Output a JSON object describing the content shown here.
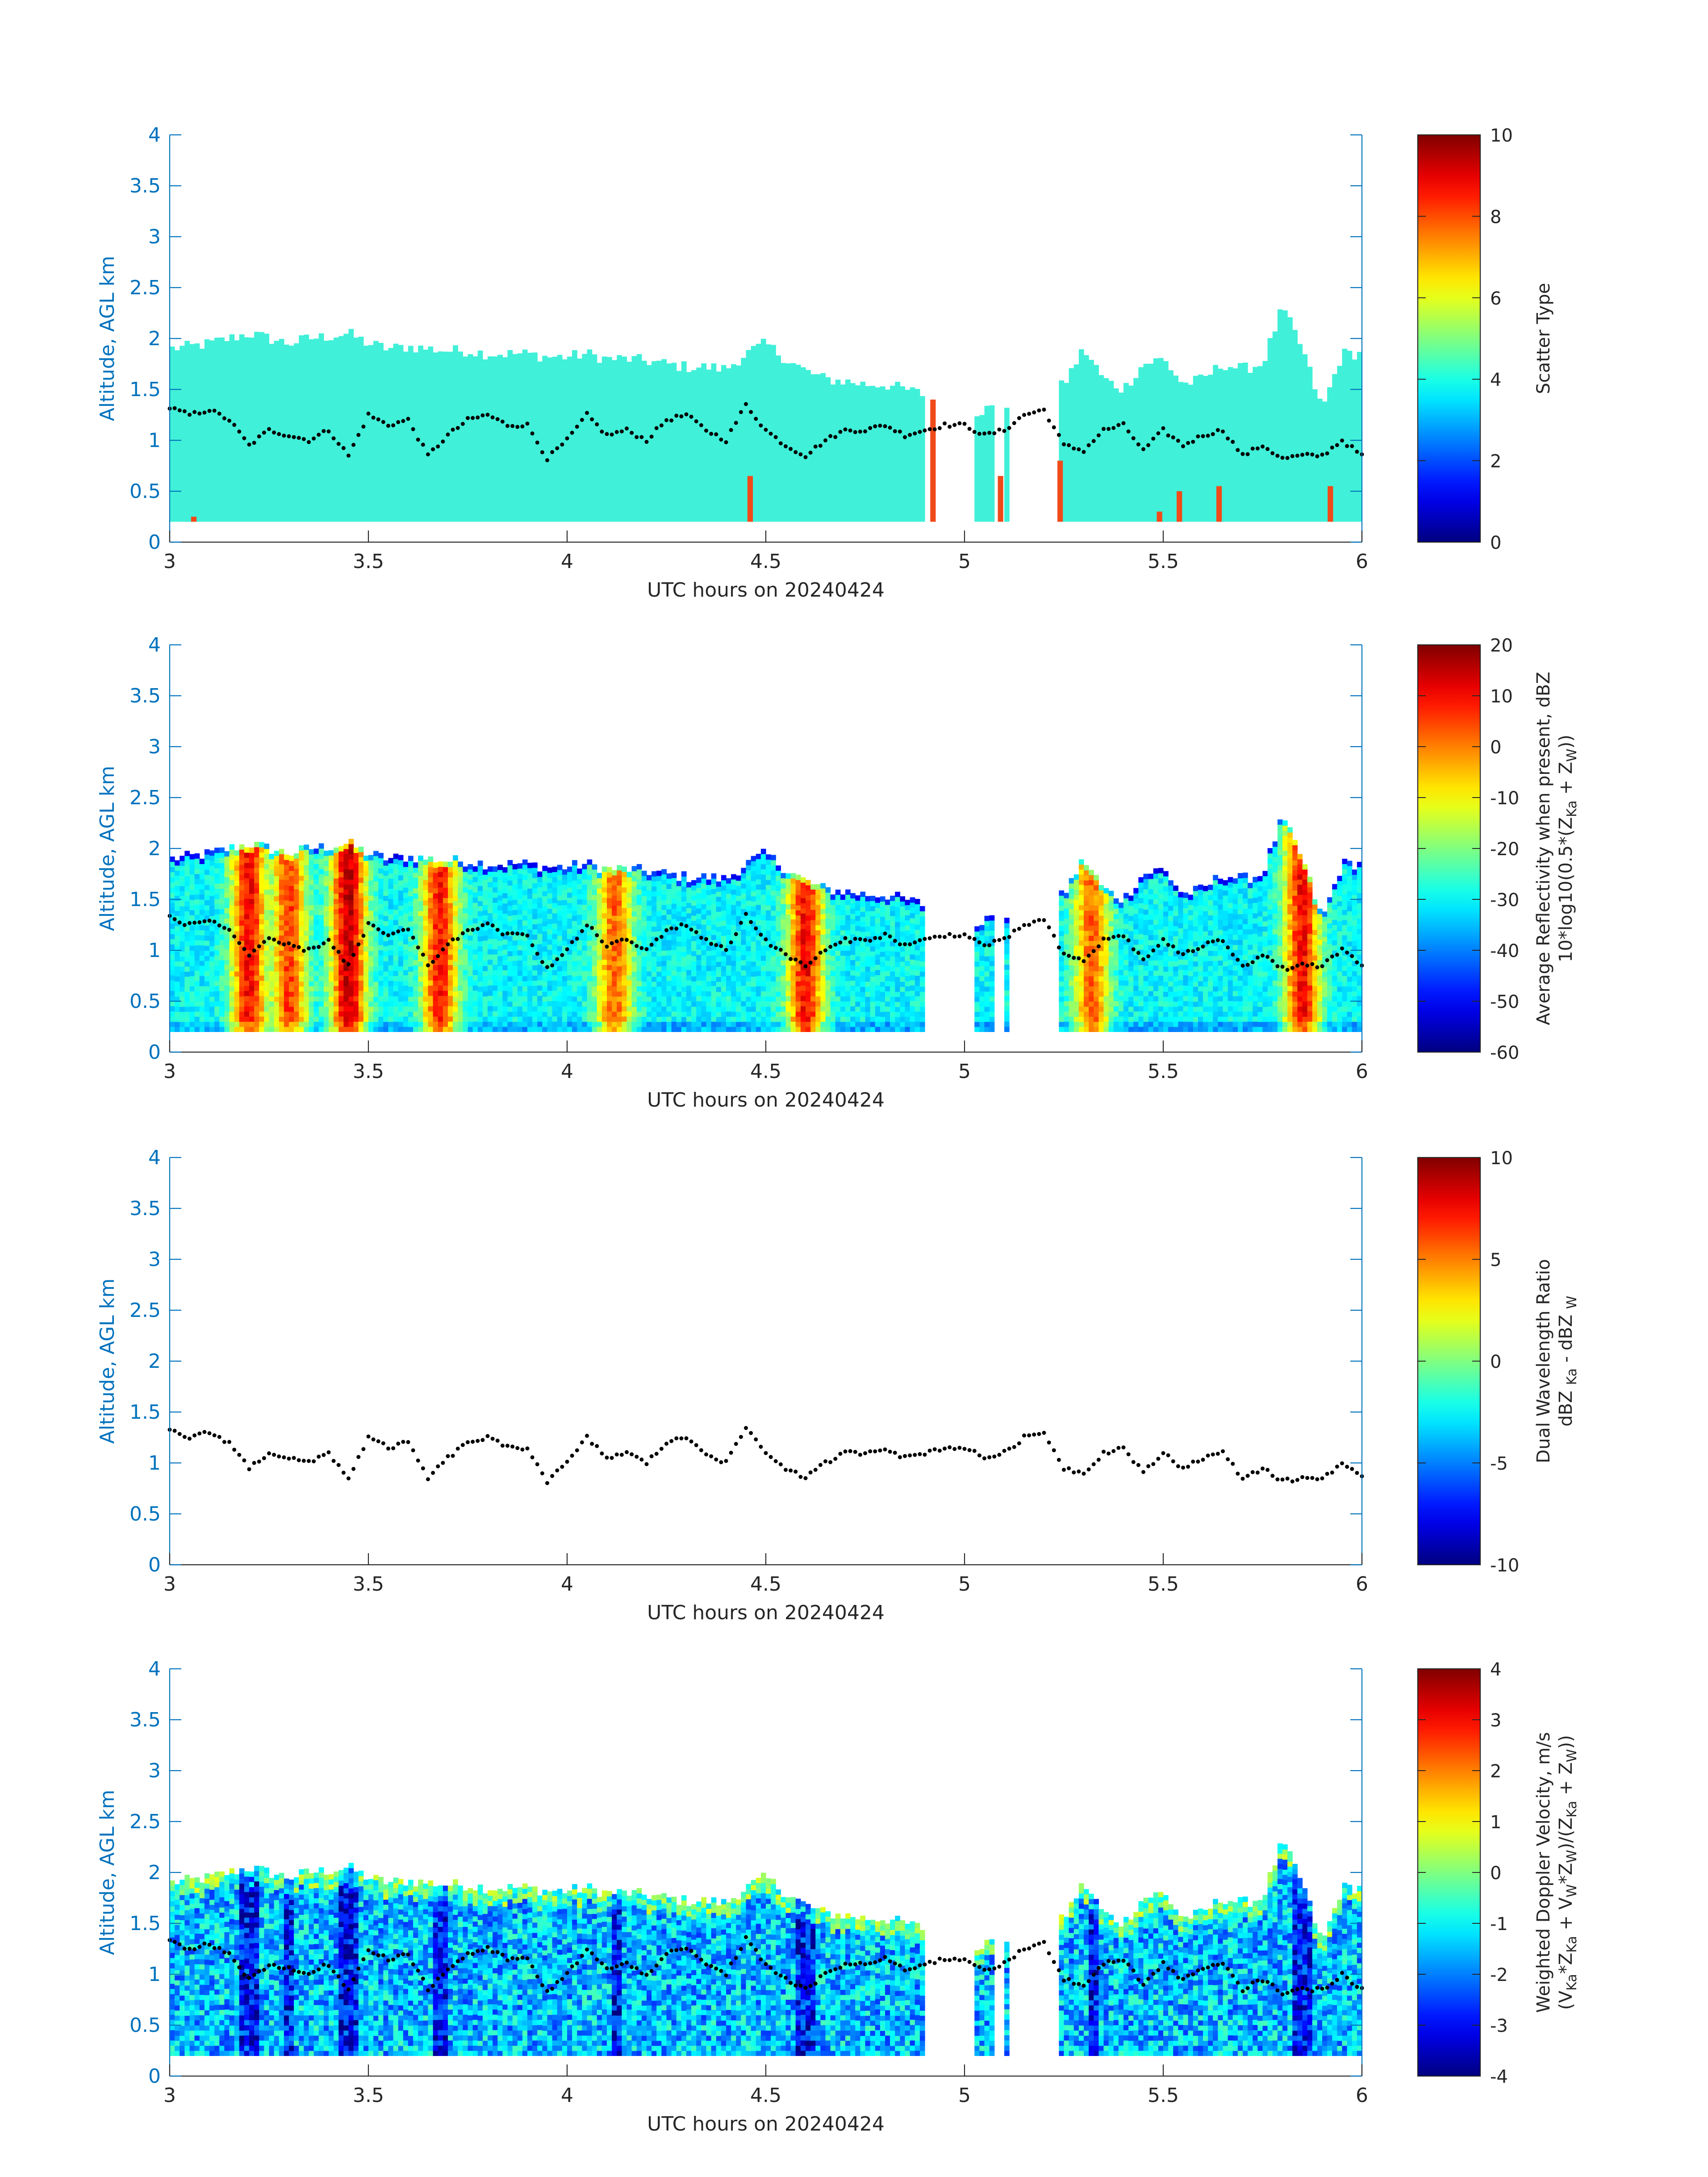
{
  "colors": {
    "axis": "#0072BD",
    "scatter_fill": "#40F0D8",
    "scatter_orange": "#F04A1A",
    "dots": "#000000",
    "colormap": "jet"
  },
  "x_axis": {
    "label": "UTC hours on 20240424",
    "range": [
      3,
      6
    ],
    "ticks": [
      "3",
      "3.5",
      "4",
      "4.5",
      "5",
      "5.5",
      "6"
    ]
  },
  "y_axis": {
    "label": "Altitude, AGL km",
    "range": [
      0,
      4
    ],
    "ticks": [
      "0",
      "0.5",
      "1",
      "1.5",
      "2",
      "2.5",
      "3",
      "3.5",
      "4"
    ]
  },
  "panels": [
    {
      "colorbar": {
        "range": [
          0,
          10
        ],
        "ticks": [
          "0",
          "2",
          "4",
          "6",
          "8",
          "10"
        ],
        "label_line1": "Scatter Type",
        "label_line2": ""
      }
    },
    {
      "colorbar": {
        "range": [
          -60,
          20
        ],
        "ticks": [
          "-60",
          "-50",
          "-40",
          "-30",
          "-20",
          "-10",
          "0",
          "10",
          "20"
        ],
        "label_line1": "Average Reflectivity when present, dBZ",
        "label_line2": "10*log10(0.5*(Z",
        "label_line2_parts": [
          "10*log10(0.5*(Z",
          "Ka",
          " + Z",
          "W",
          "))"
        ]
      }
    },
    {
      "colorbar": {
        "range": [
          -10,
          10
        ],
        "ticks": [
          "-10",
          "-5",
          "0",
          "5",
          "10"
        ],
        "label_line1": "Dual Wavelength Ratio",
        "label_line2_parts": [
          "dBZ ",
          "Ka",
          " - dBZ ",
          "W",
          ""
        ]
      }
    },
    {
      "colorbar": {
        "range": [
          -4,
          4
        ],
        "ticks": [
          "-4",
          "-3",
          "-2",
          "-1",
          "0",
          "1",
          "2",
          "3",
          "4"
        ],
        "label_line1": "Weighted Doppler Velocity, m/s",
        "label_line2_parts": [
          "(V",
          "Ka",
          "*Z",
          "Ka",
          " + V",
          "W",
          "*Z",
          "W",
          ")/(Z",
          "Ka",
          " + Z",
          "W",
          "))"
        ]
      }
    }
  ],
  "chart_data": {
    "type": "heatmap",
    "x_range": [
      3,
      6
    ],
    "y_range": [
      0,
      4
    ],
    "cloud_base_km": 0.2,
    "cloud_top_km": {
      "x": [
        3.0,
        3.05,
        3.1,
        3.15,
        3.2,
        3.25,
        3.3,
        3.35,
        3.4,
        3.45,
        3.5,
        3.55,
        3.6,
        3.65,
        3.7,
        3.75,
        3.8,
        3.85,
        3.9,
        3.95,
        4.0,
        4.05,
        4.1,
        4.15,
        4.2,
        4.25,
        4.3,
        4.35,
        4.4,
        4.45,
        4.5,
        4.55,
        4.6,
        4.65,
        4.7,
        4.75,
        4.8,
        4.85,
        4.9,
        4.95,
        5.0,
        5.05,
        5.1,
        5.15,
        5.2,
        5.25,
        5.3,
        5.35,
        5.4,
        5.45,
        5.5,
        5.55,
        5.6,
        5.65,
        5.7,
        5.75,
        5.8,
        5.85,
        5.9,
        5.95,
        6.0
      ],
      "y": [
        1.9,
        1.92,
        1.95,
        2.0,
        2.05,
        2.0,
        1.95,
        2.0,
        2.02,
        2.05,
        1.95,
        1.9,
        1.92,
        1.9,
        1.88,
        1.88,
        1.85,
        1.85,
        1.85,
        1.82,
        1.82,
        1.85,
        1.8,
        1.8,
        1.78,
        1.75,
        1.72,
        1.72,
        1.7,
        1.85,
        1.95,
        1.8,
        1.68,
        1.6,
        1.58,
        1.55,
        1.55,
        1.5,
        1.45,
        1.38,
        1.25,
        1.3,
        1.35,
        1.38,
        1.4,
        1.55,
        1.9,
        1.6,
        1.5,
        1.75,
        1.8,
        1.55,
        1.6,
        1.75,
        1.7,
        1.75,
        2.3,
        1.9,
        1.3,
        1.85,
        1.85
      ]
    },
    "gaps_hours": [
      [
        4.9,
        5.02
      ],
      [
        5.08,
        5.1
      ],
      [
        5.11,
        5.24
      ]
    ],
    "dots_altitude_km": {
      "x": [
        3.0,
        3.05,
        3.1,
        3.15,
        3.2,
        3.25,
        3.3,
        3.35,
        3.4,
        3.45,
        3.5,
        3.55,
        3.6,
        3.65,
        3.7,
        3.75,
        3.8,
        3.85,
        3.9,
        3.95,
        4.0,
        4.05,
        4.1,
        4.15,
        4.2,
        4.25,
        4.3,
        4.35,
        4.4,
        4.45,
        4.5,
        4.55,
        4.6,
        4.65,
        4.7,
        4.75,
        4.8,
        4.85,
        4.9,
        4.95,
        5.0,
        5.05,
        5.1,
        5.15,
        5.2,
        5.25,
        5.3,
        5.35,
        5.4,
        5.45,
        5.5,
        5.55,
        5.6,
        5.65,
        5.7,
        5.75,
        5.8,
        5.85,
        5.9,
        5.95,
        6.0
      ],
      "y": [
        1.32,
        1.25,
        1.3,
        1.2,
        0.95,
        1.1,
        1.05,
        1.0,
        1.1,
        0.85,
        1.25,
        1.15,
        1.2,
        0.85,
        1.05,
        1.2,
        1.25,
        1.15,
        1.15,
        0.82,
        1.0,
        1.25,
        1.05,
        1.1,
        1.0,
        1.2,
        1.25,
        1.1,
        1.0,
        1.35,
        1.1,
        0.95,
        0.85,
        1.0,
        1.1,
        1.1,
        1.15,
        1.05,
        1.1,
        1.15,
        1.15,
        1.05,
        1.1,
        1.25,
        1.3,
        0.95,
        0.9,
        1.1,
        1.15,
        0.9,
        1.1,
        0.95,
        1.05,
        1.1,
        0.85,
        0.95,
        0.82,
        0.85,
        0.85,
        1.0,
        0.85
      ]
    },
    "scatter_type_dominant": 4,
    "scatter_type_secondary": 8,
    "scatter_type_secondary_columns": [
      {
        "x": 3.06,
        "top": 0.25
      },
      {
        "x": 4.46,
        "top": 0.65
      },
      {
        "x": 4.92,
        "top": 1.4
      },
      {
        "x": 5.09,
        "top": 0.65
      },
      {
        "x": 5.24,
        "top": 0.8
      },
      {
        "x": 5.49,
        "top": 0.3
      },
      {
        "x": 5.54,
        "top": 0.5
      },
      {
        "x": 5.64,
        "top": 0.55
      },
      {
        "x": 5.92,
        "top": 0.55
      }
    ],
    "reflectivity_dBZ_cores": [
      {
        "x": 3.2,
        "value": 10
      },
      {
        "x": 3.3,
        "value": 5
      },
      {
        "x": 3.45,
        "value": 15
      },
      {
        "x": 3.68,
        "value": 8
      },
      {
        "x": 4.12,
        "value": 2
      },
      {
        "x": 4.6,
        "value": 10
      },
      {
        "x": 5.32,
        "value": 2
      },
      {
        "x": 5.85,
        "value": 10
      }
    ],
    "reflectivity_dBZ_background": -30,
    "dwr_present": false,
    "doppler_velocity_background_ms": -1.5,
    "doppler_velocity_min_ms": -4
  }
}
